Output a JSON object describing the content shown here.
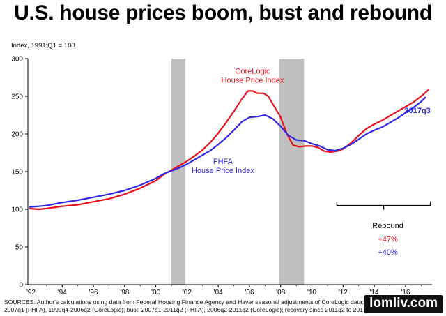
{
  "title": "U.S. house prices boom, bust and rebound",
  "sources": "SOURCES: Author's calculations using data from Federal Housing Finance Agency and Haver seasonal adjustments of CoreLogic data; Boom: 1999q4-2007q1 (FHFA), 1999q4-2006q2 (CoreLogic); bust: 2007q1-2011q2 (FHFA), 2006q2-2011q2 (CoreLogic); recovery since 2011q2 to 2017",
  "watermark": "lomliv.com",
  "chart_data": {
    "type": "line",
    "ylabel": "Index, 1991:Q1 = 100",
    "ylim": [
      0,
      300
    ],
    "yticks": [
      0,
      50,
      100,
      150,
      200,
      250,
      300
    ],
    "xlim": [
      1991.8,
      2017.7
    ],
    "xtick_labels": [
      "'92",
      "'94",
      "'96",
      "'98",
      "'00",
      "'02",
      "'04",
      "'06",
      "'08",
      "'10",
      "'12",
      "'14",
      "'16"
    ],
    "xtick_values": [
      1992,
      1994,
      1996,
      1998,
      2000,
      2002,
      2004,
      2006,
      2008,
      2010,
      2012,
      2014,
      2016
    ],
    "grid": false,
    "recession_bands": [
      [
        2001.0,
        2001.9
      ],
      [
        2007.9,
        2009.5
      ]
    ],
    "series": [
      {
        "name": "CoreLogic House Price Index",
        "label_lines": [
          "CoreLogic",
          "House Price Index"
        ],
        "color": "#e8101a",
        "x": [
          1991.9,
          1992.5,
          1993,
          1994,
          1995,
          1996,
          1997,
          1998,
          1999,
          2000,
          2000.5,
          2001,
          2001.5,
          2002,
          2002.5,
          2003,
          2003.5,
          2004,
          2004.5,
          2005,
          2005.5,
          2005.9,
          2006.2,
          2006.5,
          2006.9,
          2007.2,
          2007.6,
          2008,
          2008.4,
          2008.8,
          2009.2,
          2009.6,
          2010,
          2010.4,
          2010.8,
          2011.2,
          2011.6,
          2012,
          2012.5,
          2013,
          2013.5,
          2014,
          2014.5,
          2015,
          2015.5,
          2016,
          2016.5,
          2017,
          2017.5
        ],
        "y": [
          101,
          100,
          101,
          104,
          106,
          110,
          114,
          120,
          128,
          138,
          146,
          152,
          158,
          164,
          171,
          179,
          189,
          201,
          215,
          230,
          246,
          257,
          257,
          254,
          254,
          250,
          236,
          222,
          200,
          185,
          183,
          184,
          184,
          182,
          177,
          176,
          177,
          180,
          188,
          198,
          207,
          213,
          218,
          224,
          230,
          236,
          242,
          250,
          259
        ]
      },
      {
        "name": "FHFA House Price Index",
        "label_lines": [
          "FHFA",
          "House Price Index"
        ],
        "color": "#2f28e6",
        "x": [
          1991.9,
          1992.5,
          1993,
          1994,
          1995,
          1996,
          1997,
          1998,
          1999,
          2000,
          2000.5,
          2001,
          2001.5,
          2002,
          2002.5,
          2003,
          2003.5,
          2004,
          2004.5,
          2005,
          2005.5,
          2006,
          2006.5,
          2007,
          2007.5,
          2008,
          2008.5,
          2009,
          2009.5,
          2010,
          2010.5,
          2011,
          2011.5,
          2012,
          2012.5,
          2013,
          2013.5,
          2014,
          2014.5,
          2015,
          2015.5,
          2016,
          2016.5,
          2017,
          2017.3
        ],
        "y": [
          103,
          104,
          105,
          109,
          112,
          116,
          120,
          125,
          132,
          141,
          147,
          151,
          155,
          160,
          166,
          172,
          178,
          186,
          195,
          205,
          216,
          222,
          223,
          225,
          220,
          210,
          198,
          192,
          191,
          187,
          184,
          179,
          178,
          181,
          186,
          193,
          200,
          205,
          209,
          215,
          221,
          228,
          235,
          243,
          249
        ]
      }
    ],
    "end_label": "2017q3",
    "annotation": {
      "label": "Rebound",
      "values": [
        "+47%",
        "+40%"
      ],
      "span": [
        2011.6,
        2017.6
      ]
    }
  }
}
